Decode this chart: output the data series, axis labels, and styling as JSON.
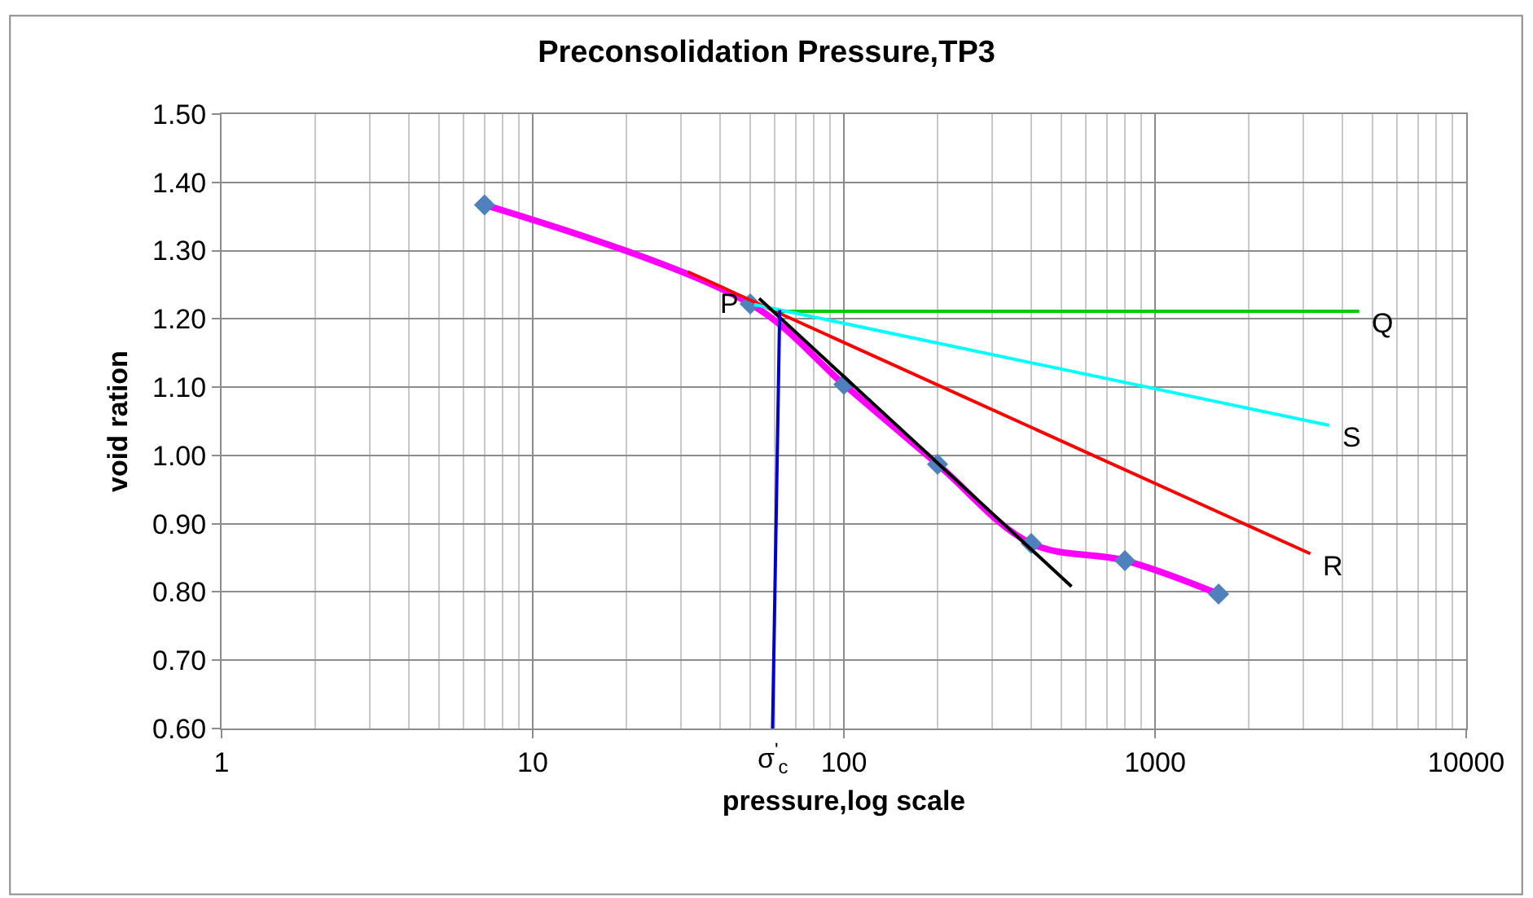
{
  "chart_data": {
    "type": "line",
    "title": "Preconsolidation Pressure,TP3",
    "xlabel": "pressure,log scale",
    "ylabel": "void ration",
    "log": "x",
    "grid": true,
    "legend": false,
    "xlim": [
      1,
      10000
    ],
    "xticks": [
      1,
      10,
      100,
      1000,
      10000
    ],
    "ylim": [
      0.6,
      1.5
    ],
    "yticks": [
      {
        "value": 0.6,
        "label": "0.60"
      },
      {
        "value": 0.7,
        "label": "0.70"
      },
      {
        "value": 0.8,
        "label": "0.80"
      },
      {
        "value": 0.9,
        "label": "0.90"
      },
      {
        "value": 1.0,
        "label": "1.00"
      },
      {
        "value": 1.1,
        "label": "1.10"
      },
      {
        "value": 1.2,
        "label": "1.20"
      },
      {
        "value": 1.3,
        "label": "1.30"
      },
      {
        "value": 1.4,
        "label": "1.40"
      },
      {
        "value": 1.5,
        "label": "1.50"
      }
    ],
    "series": [
      {
        "color": "#ff00ff",
        "marker": "none",
        "x": [
          7,
          50,
          100,
          200,
          400,
          800,
          1600
        ],
        "values": [
          1.367,
          1.222,
          1.104,
          0.987,
          0.871,
          0.846,
          0.797
        ]
      },
      {
        "type": "scatter",
        "color": "#4f81bd",
        "marker": "diamond",
        "x": [
          7,
          50,
          100,
          200,
          400,
          800,
          1600
        ],
        "values": [
          1.367,
          1.222,
          1.104,
          0.987,
          0.871,
          0.846,
          0.797
        ]
      },
      {
        "name": "R",
        "color": "#ff0000",
        "marker": "none",
        "x": [
          31.5,
          3155
        ],
        "values": [
          1.269,
          0.856
        ]
      },
      {
        "name": "Q",
        "color": "#00cc00",
        "marker": "none",
        "x": [
          61.5,
          4530
        ],
        "values": [
          1.211,
          1.211
        ]
      },
      {
        "name": "S",
        "color": "#00ffff",
        "marker": "none",
        "x": [
          51.5,
          3630
        ],
        "values": [
          1.221,
          1.044
        ]
      },
      {
        "color": "#000000",
        "marker": "none",
        "x": [
          53.4,
          539
        ],
        "values": [
          1.23,
          0.808
        ]
      },
      {
        "color": "#0000cc",
        "marker": "none",
        "x": [
          62.2,
          59
        ],
        "values": [
          1.213,
          0.6
        ]
      }
    ],
    "annotations": [
      {
        "text": "P",
        "x": 50,
        "y": 1.222
      },
      {
        "text": "σ$^{'}$$_{c}$",
        "x": 59,
        "y": 0.6
      }
    ]
  }
}
